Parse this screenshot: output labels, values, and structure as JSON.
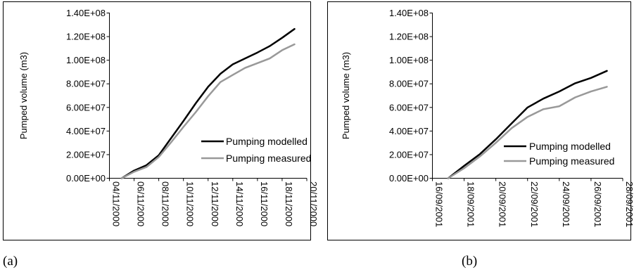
{
  "chart_data": [
    {
      "type": "line",
      "panel_label": "(a)",
      "ylabel": "Pumped volume (m3)",
      "ylim": [
        0,
        140000000
      ],
      "yticks": [
        0,
        20000000,
        40000000,
        60000000,
        80000000,
        100000000,
        120000000,
        140000000
      ],
      "ytick_labels": [
        "0.00E+00",
        "2.00E+07",
        "4.00E+07",
        "6.00E+07",
        "8.00E+07",
        "1.00E+08",
        "1.20E+08",
        "1.40E+08"
      ],
      "xlim": [
        "2000-11-04",
        "2000-11-20"
      ],
      "xtick_labels": [
        "04/11/2000",
        "06/11/2000",
        "08/11/2000",
        "10/11/2000",
        "12/11/2000",
        "14/11/2000",
        "16/11/2000",
        "18/11/2000",
        "20/11/2000"
      ],
      "xtick_dates": [
        "2000-11-04",
        "2000-11-06",
        "2000-11-08",
        "2000-11-10",
        "2000-11-12",
        "2000-11-14",
        "2000-11-16",
        "2000-11-18",
        "2000-11-20"
      ],
      "legend_position": "bottom-right",
      "series": [
        {
          "name": "Pumping modelled",
          "color": "#000000",
          "x": [
            "2000-11-05",
            "2000-11-06",
            "2000-11-07",
            "2000-11-08",
            "2000-11-09",
            "2000-11-10",
            "2000-11-11",
            "2000-11-12",
            "2000-11-13",
            "2000-11-14",
            "2000-11-15",
            "2000-11-16",
            "2000-11-17",
            "2000-11-18",
            "2000-11-19"
          ],
          "values": [
            0,
            6500000,
            11000000,
            19500000,
            34000000,
            48500000,
            63500000,
            77500000,
            88500000,
            96500000,
            101500000,
            106500000,
            112000000,
            119000000,
            126500000
          ]
        },
        {
          "name": "Pumping measured",
          "color": "#999999",
          "x": [
            "2000-11-05",
            "2000-11-06",
            "2000-11-07",
            "2000-11-08",
            "2000-11-09",
            "2000-11-10",
            "2000-11-11",
            "2000-11-12",
            "2000-11-13",
            "2000-11-14",
            "2000-11-15",
            "2000-11-16",
            "2000-11-17",
            "2000-11-18",
            "2000-11-19"
          ],
          "values": [
            0,
            5500000,
            9500000,
            18000000,
            30500000,
            43500000,
            56000000,
            69500000,
            81500000,
            87500000,
            93500000,
            97500000,
            101500000,
            108500000,
            113500000
          ]
        }
      ]
    },
    {
      "type": "line",
      "panel_label": "(b)",
      "ylabel": "Pumped volume (m3)",
      "ylim": [
        0,
        140000000
      ],
      "yticks": [
        0,
        20000000,
        40000000,
        60000000,
        80000000,
        100000000,
        120000000,
        140000000
      ],
      "ytick_labels": [
        "0.00E+00",
        "2.00E+07",
        "4.00E+07",
        "6.00E+07",
        "8.00E+07",
        "1.00E+08",
        "1.20E+08",
        "1.40E+08"
      ],
      "xlim": [
        "2001-09-16",
        "2001-09-28"
      ],
      "xtick_labels": [
        "16/09/2001",
        "18/09/2001",
        "20/09/2001",
        "22/09/2001",
        "24/09/2001",
        "26/09/2001",
        "28/09/2001"
      ],
      "xtick_dates": [
        "2001-09-16",
        "2001-09-18",
        "2001-09-20",
        "2001-09-22",
        "2001-09-24",
        "2001-09-26",
        "2001-09-28"
      ],
      "legend_position": "bottom-right",
      "series": [
        {
          "name": "Pumping modelled",
          "color": "#000000",
          "x": [
            "2001-09-17",
            "2001-09-18",
            "2001-09-19",
            "2001-09-20",
            "2001-09-21",
            "2001-09-22",
            "2001-09-23",
            "2001-09-24",
            "2001-09-25",
            "2001-09-26",
            "2001-09-27"
          ],
          "values": [
            0,
            10500000,
            20500000,
            33000000,
            46500000,
            60000000,
            67500000,
            73500000,
            80500000,
            85000000,
            91000000
          ]
        },
        {
          "name": "Pumping measured",
          "color": "#999999",
          "x": [
            "2001-09-17",
            "2001-09-18",
            "2001-09-19",
            "2001-09-20",
            "2001-09-21",
            "2001-09-22",
            "2001-09-23",
            "2001-09-24",
            "2001-09-25",
            "2001-09-26",
            "2001-09-27"
          ],
          "values": [
            0,
            8500000,
            18500000,
            30000000,
            42500000,
            52000000,
            58500000,
            61000000,
            68500000,
            73500000,
            77500000
          ]
        }
      ]
    }
  ]
}
